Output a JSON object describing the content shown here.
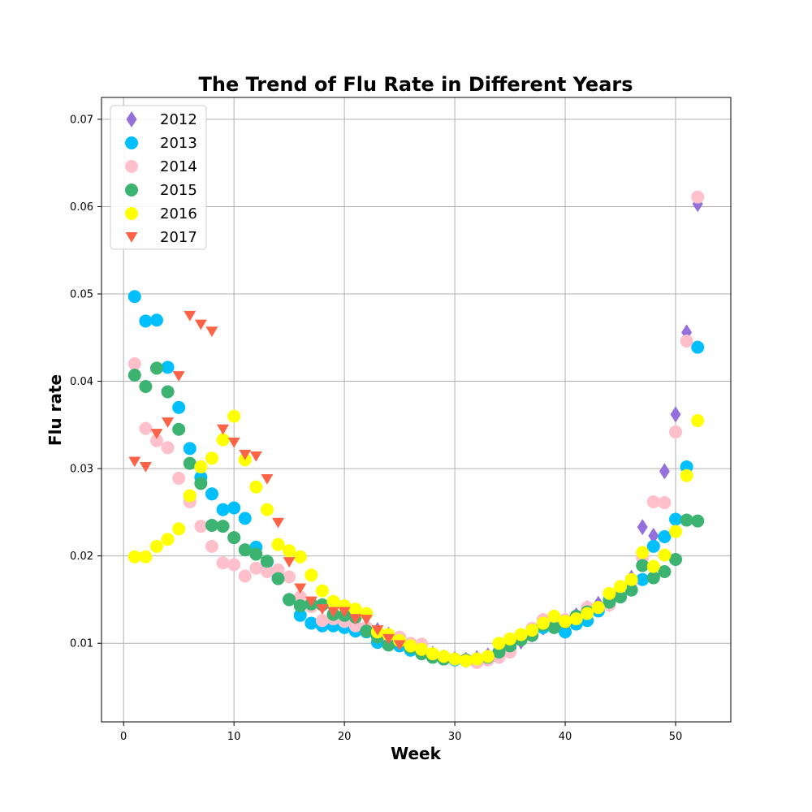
{
  "chart_data": {
    "type": "scatter",
    "title": "The Trend of Flu Rate in Different Years",
    "xlabel": "Week",
    "ylabel": "Flu rate",
    "xlim": [
      -2,
      55
    ],
    "ylim": [
      0.001,
      0.0725
    ],
    "xticks": [
      0,
      10,
      20,
      30,
      40,
      50
    ],
    "yticks": [
      0.01,
      0.02,
      0.03,
      0.04,
      0.05,
      0.06,
      0.07
    ],
    "grid": true,
    "legend_position": "top-left",
    "series": [
      {
        "name": "2012",
        "marker": "diamond",
        "color": "#9370DB",
        "x": [
          20,
          21,
          22,
          23,
          24,
          25,
          26,
          27,
          28,
          29,
          30,
          31,
          32,
          33,
          34,
          35,
          36,
          37,
          38,
          39,
          40,
          41,
          42,
          43,
          44,
          45,
          46,
          47,
          48,
          49,
          50,
          51,
          52
        ],
        "y": [
          0.0127,
          0.0125,
          0.012,
          0.0115,
          0.011,
          0.0103,
          0.0097,
          0.0093,
          0.0088,
          0.0084,
          0.0082,
          0.0081,
          0.0083,
          0.0086,
          0.009,
          0.0095,
          0.0102,
          0.011,
          0.0118,
          0.0125,
          0.0122,
          0.0132,
          0.014,
          0.0145,
          0.0145,
          0.0155,
          0.0175,
          0.0233,
          0.0223,
          0.0297,
          0.0362,
          0.0456,
          0.0603
        ]
      },
      {
        "name": "2013",
        "marker": "circle",
        "color": "#00BFFF",
        "x": [
          1,
          2,
          3,
          4,
          5,
          6,
          7,
          8,
          9,
          10,
          11,
          12,
          13,
          14,
          15,
          16,
          17,
          18,
          19,
          20,
          21,
          22,
          23,
          24,
          25,
          26,
          27,
          28,
          29,
          30,
          31,
          32,
          33,
          34,
          35,
          36,
          37,
          38,
          39,
          40,
          41,
          42,
          43,
          44,
          45,
          46,
          47,
          48,
          49,
          50,
          51,
          52
        ],
        "y": [
          0.0497,
          0.0469,
          0.047,
          0.0416,
          0.037,
          0.0323,
          0.029,
          0.0271,
          0.0253,
          0.0255,
          0.0243,
          0.021,
          0.0193,
          0.0175,
          0.015,
          0.0132,
          0.0123,
          0.012,
          0.012,
          0.0118,
          0.0114,
          0.0113,
          0.0101,
          0.0101,
          0.0097,
          0.0092,
          0.009,
          0.0085,
          0.0082,
          0.0081,
          0.008,
          0.0079,
          0.0081,
          0.0087,
          0.0095,
          0.0105,
          0.0113,
          0.0118,
          0.012,
          0.0113,
          0.0122,
          0.0126,
          0.0137,
          0.015,
          0.0155,
          0.0161,
          0.0173,
          0.0211,
          0.0222,
          0.0242,
          0.0302,
          0.0439
        ]
      },
      {
        "name": "2014",
        "marker": "circle",
        "color": "#FFC0CB",
        "x": [
          1,
          2,
          3,
          4,
          5,
          6,
          7,
          8,
          9,
          10,
          11,
          12,
          13,
          14,
          15,
          16,
          17,
          18,
          19,
          20,
          21,
          22,
          23,
          24,
          25,
          26,
          27,
          28,
          29,
          30,
          31,
          32,
          33,
          34,
          35,
          36,
          37,
          38,
          39,
          40,
          41,
          42,
          43,
          44,
          45,
          46,
          47,
          48,
          49,
          50,
          51,
          52
        ],
        "y": [
          0.042,
          0.0346,
          0.0332,
          0.0324,
          0.0289,
          0.0262,
          0.0234,
          0.0211,
          0.0192,
          0.019,
          0.0177,
          0.0186,
          0.0182,
          0.0184,
          0.0176,
          0.0153,
          0.0142,
          0.0126,
          0.0128,
          0.0125,
          0.012,
          0.0118,
          0.0112,
          0.0108,
          0.0107,
          0.01,
          0.0099,
          0.0087,
          0.0085,
          0.0082,
          0.008,
          0.0078,
          0.0081,
          0.0084,
          0.009,
          0.0104,
          0.0117,
          0.0127,
          0.0129,
          0.0127,
          0.013,
          0.0141,
          0.0141,
          0.0144,
          0.0162,
          0.017,
          0.0198,
          0.0262,
          0.0261,
          0.0342,
          0.0446,
          0.0611
        ]
      },
      {
        "name": "2015",
        "marker": "circle",
        "color": "#3CB371",
        "x": [
          1,
          2,
          3,
          4,
          5,
          6,
          7,
          8,
          9,
          10,
          11,
          12,
          13,
          14,
          15,
          16,
          17,
          18,
          19,
          20,
          21,
          22,
          23,
          24,
          25,
          26,
          27,
          28,
          29,
          30,
          31,
          32,
          33,
          34,
          35,
          36,
          37,
          38,
          39,
          40,
          41,
          42,
          43,
          44,
          45,
          46,
          47,
          48,
          49,
          50,
          51,
          52
        ],
        "y": [
          0.0407,
          0.0394,
          0.0415,
          0.0388,
          0.0345,
          0.0306,
          0.0283,
          0.0235,
          0.0234,
          0.0221,
          0.0207,
          0.0202,
          0.0194,
          0.0174,
          0.015,
          0.0143,
          0.0145,
          0.0144,
          0.0133,
          0.0132,
          0.013,
          0.0114,
          0.0107,
          0.0098,
          0.0102,
          0.0095,
          0.0088,
          0.0084,
          0.0082,
          0.0082,
          0.0081,
          0.0082,
          0.0084,
          0.009,
          0.0097,
          0.0104,
          0.0109,
          0.0121,
          0.0118,
          0.0124,
          0.0131,
          0.0136,
          0.0141,
          0.0147,
          0.0153,
          0.0161,
          0.0189,
          0.0175,
          0.0182,
          0.0196,
          0.0241,
          0.024
        ]
      },
      {
        "name": "2016",
        "marker": "circle",
        "color": "#FFFF00",
        "x": [
          1,
          2,
          3,
          4,
          5,
          6,
          7,
          8,
          9,
          10,
          11,
          12,
          13,
          14,
          15,
          16,
          17,
          18,
          19,
          20,
          21,
          22,
          23,
          24,
          25,
          26,
          27,
          28,
          29,
          30,
          31,
          32,
          33,
          34,
          35,
          36,
          37,
          38,
          39,
          40,
          41,
          42,
          43,
          44,
          45,
          46,
          47,
          48,
          49,
          50,
          51,
          52
        ],
        "y": [
          0.0199,
          0.0199,
          0.0211,
          0.0219,
          0.0231,
          0.0269,
          0.0302,
          0.0312,
          0.0333,
          0.036,
          0.031,
          0.0279,
          0.0253,
          0.0213,
          0.0206,
          0.0199,
          0.0178,
          0.016,
          0.0148,
          0.0143,
          0.0139,
          0.0134,
          0.0113,
          0.011,
          0.0103,
          0.0097,
          0.0093,
          0.0088,
          0.0085,
          0.0082,
          0.008,
          0.0082,
          0.0085,
          0.01,
          0.0105,
          0.011,
          0.0115,
          0.0123,
          0.0131,
          0.0125,
          0.0128,
          0.0134,
          0.0141,
          0.0157,
          0.0165,
          0.0173,
          0.0204,
          0.0188,
          0.0201,
          0.0228,
          0.0292,
          0.0355
        ]
      },
      {
        "name": "2017",
        "marker": "triangle-down",
        "color": "#FF6347",
        "x": [
          1,
          2,
          3,
          4,
          5,
          6,
          7,
          8,
          9,
          10,
          11,
          12,
          13,
          14,
          15,
          16,
          17,
          18,
          19,
          20,
          21,
          22,
          23,
          24,
          25
        ],
        "y": [
          0.0308,
          0.0302,
          0.034,
          0.0353,
          0.0406,
          0.0475,
          0.0465,
          0.0457,
          0.0345,
          0.033,
          0.0316,
          0.0314,
          0.0288,
          0.0238,
          0.0193,
          0.0163,
          0.0148,
          0.0139,
          0.0136,
          0.0136,
          0.0128,
          0.0127,
          0.0115,
          0.0105,
          0.0098
        ]
      }
    ]
  }
}
